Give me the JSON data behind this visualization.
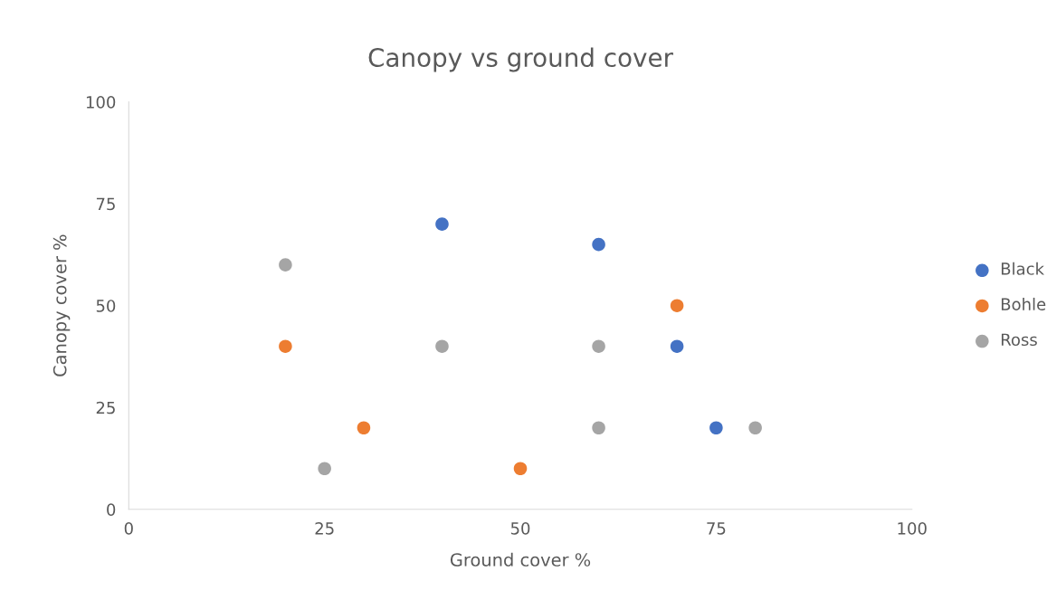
{
  "chart_data": {
    "type": "scatter",
    "title": "Canopy vs ground cover",
    "xlabel": "Ground cover %",
    "ylabel": "Canopy cover %",
    "xlim": [
      0,
      100
    ],
    "xticks": [
      0,
      25,
      50,
      75,
      100
    ],
    "ylim": [
      0,
      100
    ],
    "yticks": [
      0,
      25,
      50,
      75,
      100
    ],
    "grid": false,
    "legend": "right",
    "marker": "circle",
    "series": [
      {
        "name": "Black",
        "color": "#4472c4",
        "x": [
          40,
          60,
          70,
          75
        ],
        "values": [
          70,
          65,
          40,
          20
        ]
      },
      {
        "name": "Bohle",
        "color": "#ed7d31",
        "x": [
          20,
          30,
          50,
          70
        ],
        "values": [
          40,
          20,
          10,
          50
        ]
      },
      {
        "name": "Ross",
        "color": "#a5a5a5",
        "x": [
          20,
          25,
          40,
          60,
          60,
          80
        ],
        "values": [
          60,
          10,
          40,
          40,
          20,
          20
        ]
      }
    ]
  }
}
